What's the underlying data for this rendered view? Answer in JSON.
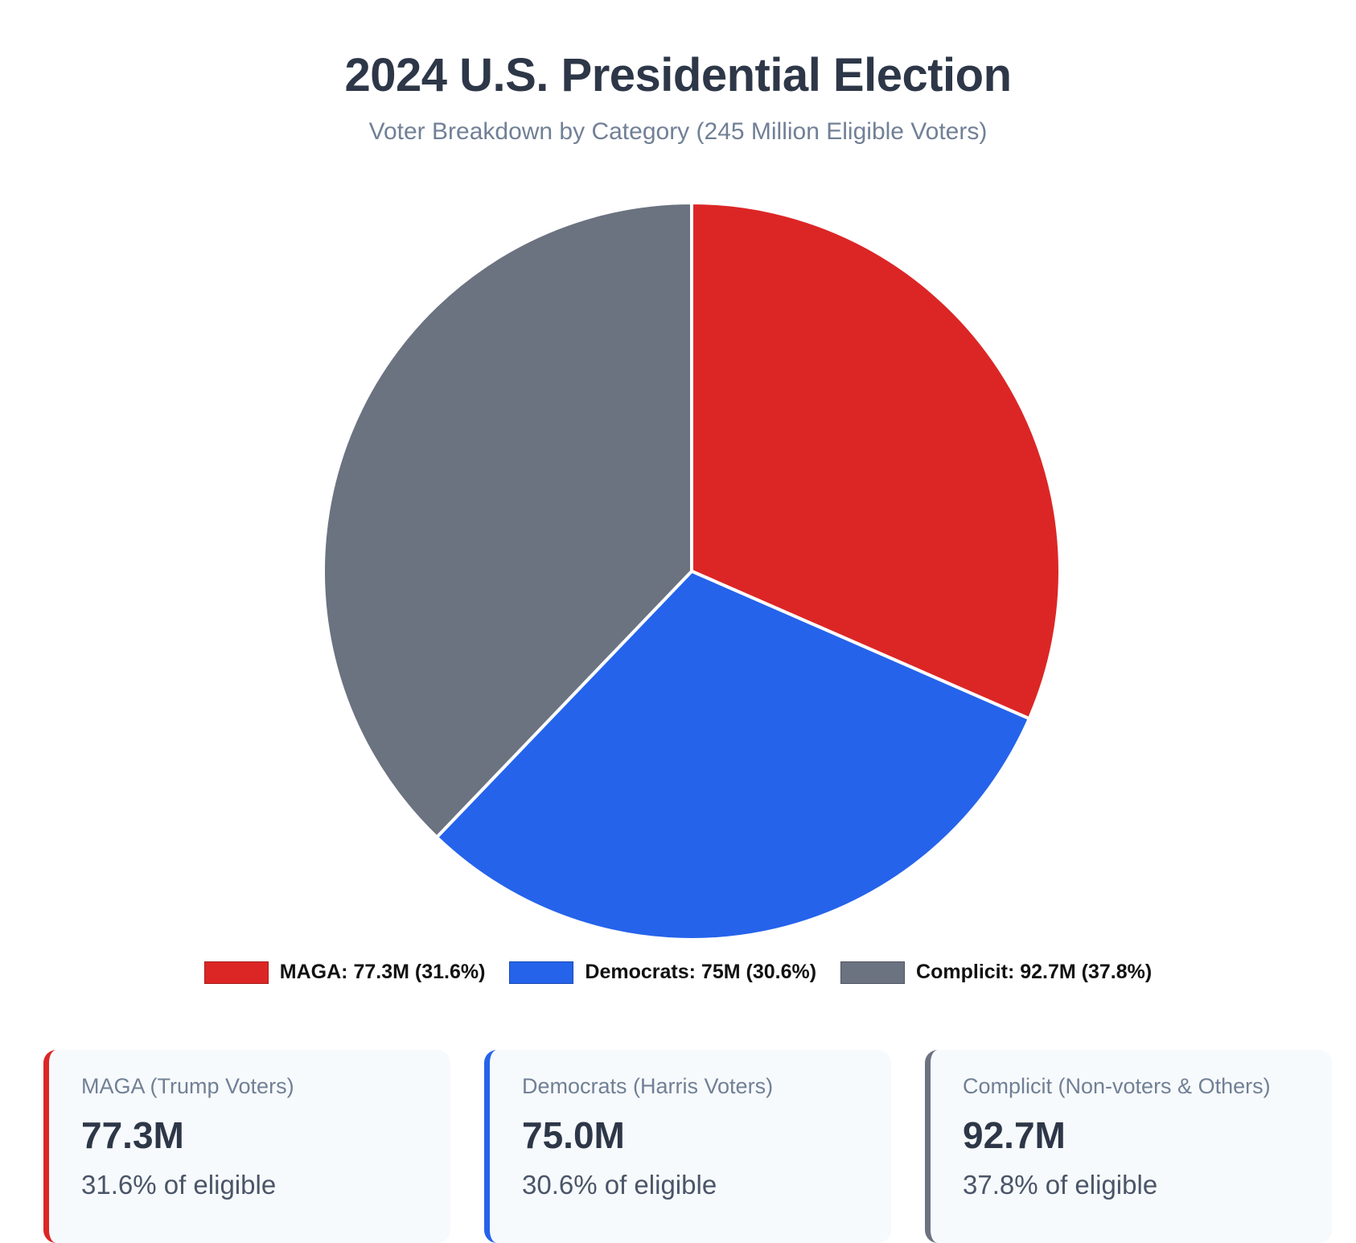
{
  "title": "2024 U.S. Presidential Election",
  "subtitle": "Voter Breakdown by Category (245 Million Eligible Voters)",
  "chart_data": {
    "type": "pie",
    "title": "2024 U.S. Presidential Election",
    "subtitle": "Voter Breakdown by Category (245 Million Eligible Voters)",
    "categories": [
      "MAGA",
      "Democrats",
      "Complicit"
    ],
    "values": [
      77.3,
      75,
      92.7
    ],
    "percentages": [
      31.6,
      30.6,
      37.8
    ],
    "units": "M",
    "colors": [
      "#dc2626",
      "#2563eb",
      "#6b7280"
    ],
    "start_angle": "12 o'clock",
    "direction": "clockwise",
    "legend_position": "bottom"
  },
  "legend": [
    {
      "label": "MAGA: 77.3M (31.6%)",
      "color": "#dc2626"
    },
    {
      "label": "Democrats: 75M (30.6%)",
      "color": "#2563eb"
    },
    {
      "label": "Complicit: 92.7M (37.8%)",
      "color": "#6b7280"
    }
  ],
  "cards": [
    {
      "label": "MAGA (Trump Voters)",
      "value": "77.3M",
      "pct": "31.6% of eligible",
      "color": "#dc2626"
    },
    {
      "label": "Democrats (Harris Voters)",
      "value": "75.0M",
      "pct": "30.6% of eligible",
      "color": "#2563eb"
    },
    {
      "label": "Complicit (Non-voters & Others)",
      "value": "92.7M",
      "pct": "37.8% of eligible",
      "color": "#6b7280"
    }
  ]
}
